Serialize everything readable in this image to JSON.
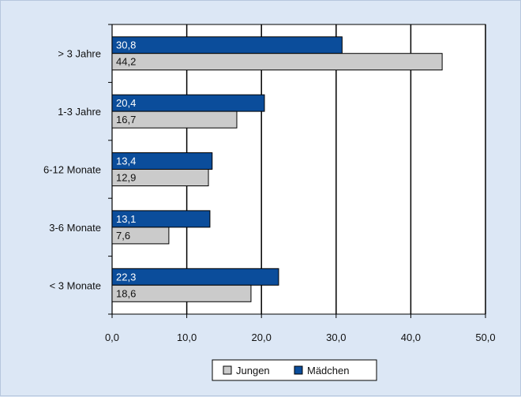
{
  "chart_data": {
    "type": "bar",
    "orientation": "horizontal",
    "categories": [
      "> 3 Jahre",
      "1-3 Jahre",
      "6-12 Monate",
      "3-6 Monate",
      "< 3 Monate"
    ],
    "series": [
      {
        "name": "Mädchen",
        "color": "#0b4d9b",
        "values": [
          30.8,
          20.4,
          13.4,
          13.1,
          22.3
        ],
        "labels": [
          "30,8",
          "20,4",
          "13,4",
          "13,1",
          "22,3"
        ]
      },
      {
        "name": "Jungen",
        "color": "#cbcbcb",
        "values": [
          44.2,
          16.7,
          12.9,
          7.6,
          18.6
        ],
        "labels": [
          "44,2",
          "16,7",
          "12,9",
          "7,6",
          "18,6"
        ]
      }
    ],
    "xlim": [
      0,
      50
    ],
    "xticks": [
      0,
      10,
      20,
      30,
      40,
      50
    ],
    "xtick_labels": [
      "0,0",
      "10,0",
      "20,0",
      "30,0",
      "40,0",
      "50,0"
    ],
    "grid": "vertical",
    "legend_position": "bottom-center",
    "legend_order": [
      "Jungen",
      "Mädchen"
    ],
    "background_color": "#dce7f5",
    "plot_background_color": "#ffffff"
  }
}
